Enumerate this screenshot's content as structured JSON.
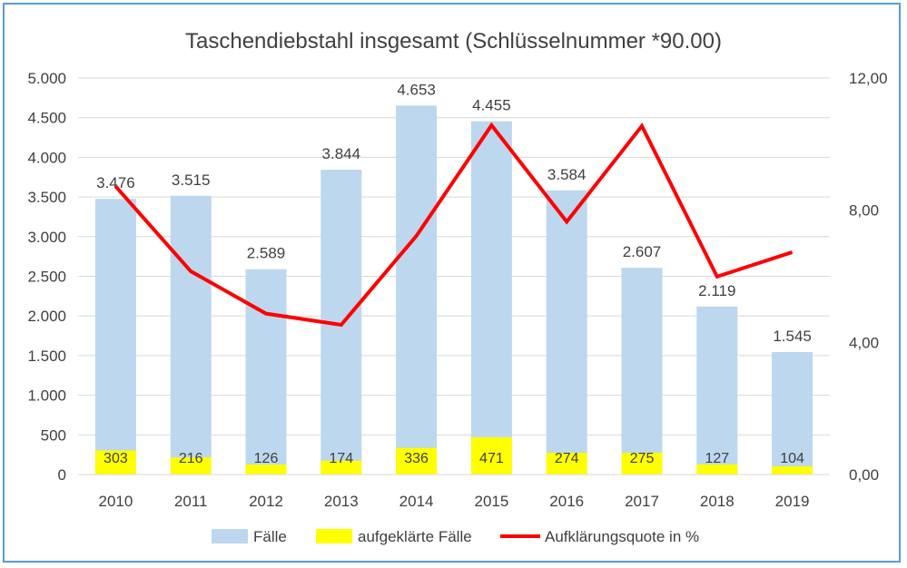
{
  "chart_data": {
    "type": "bar",
    "title": "Taschendiebstahl insgesamt (Schlüsselnummer *90.00)",
    "categories": [
      "2010",
      "2011",
      "2012",
      "2013",
      "2014",
      "2015",
      "2016",
      "2017",
      "2018",
      "2019"
    ],
    "series": [
      {
        "name": "Fälle",
        "type": "bar",
        "axis": "left",
        "color": "#bdd7ee",
        "values": [
          3476,
          3515,
          2589,
          3844,
          4653,
          4455,
          3584,
          2607,
          2119,
          1545
        ],
        "labels": [
          "3.476",
          "3.515",
          "2.589",
          "3.844",
          "4.653",
          "4.455",
          "3.584",
          "2.607",
          "2.119",
          "1.545"
        ]
      },
      {
        "name": "aufgeklärte Fälle",
        "type": "bar",
        "axis": "left",
        "color": "#ffff00",
        "values": [
          303,
          216,
          126,
          174,
          336,
          471,
          274,
          275,
          127,
          104
        ],
        "labels": [
          "303",
          "216",
          "126",
          "174",
          "336",
          "471",
          "274",
          "275",
          "127",
          "104"
        ]
      },
      {
        "name": "Aufklärungsquote in %",
        "type": "line",
        "axis": "right",
        "color": "#ff0000",
        "values": [
          8.72,
          6.15,
          4.87,
          4.53,
          7.22,
          10.57,
          7.65,
          10.55,
          5.99,
          6.73
        ]
      }
    ],
    "y_left": {
      "range": [
        0,
        5000
      ],
      "ticks": [
        0,
        500,
        1000,
        1500,
        2000,
        2500,
        3000,
        3500,
        4000,
        4500,
        5000
      ],
      "tick_labels": [
        "0",
        "500",
        "1.000",
        "1.500",
        "2.000",
        "2.500",
        "3.000",
        "3.500",
        "4.000",
        "4.500",
        "5.000"
      ]
    },
    "y_right": {
      "range": [
        0,
        12
      ],
      "ticks": [
        0,
        4,
        8,
        12
      ],
      "tick_labels": [
        "0,00",
        "4,00",
        "8,00",
        "12,00"
      ]
    },
    "grid": true,
    "legend": "bottom"
  }
}
